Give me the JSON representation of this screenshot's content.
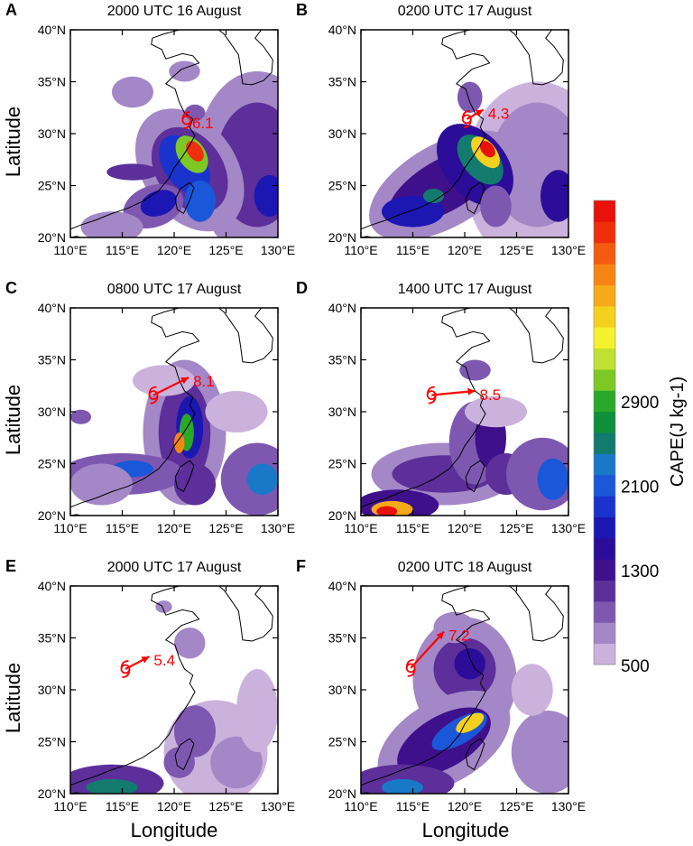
{
  "figure": {
    "x_axis_label": "Longitude",
    "y_axis_label": "Latitude",
    "lon_ticks": [
      "110°E",
      "115°E",
      "120°E",
      "125°E",
      "130°E"
    ],
    "lat_ticks": [
      "20°N",
      "25°N",
      "30°N",
      "35°N",
      "40°N"
    ],
    "colorbar": {
      "title": "CAPE(J kg-1)",
      "tick_labels": [
        "500",
        "1300",
        "2100",
        "2900"
      ],
      "tick_values": [
        500,
        1300,
        2100,
        2900
      ],
      "levels_start": 500,
      "level_step": 200,
      "colors": [
        "#cbb2dc",
        "#a487c6",
        "#7e58b0",
        "#5c2f9a",
        "#3f108c",
        "#2b0d99",
        "#1c16b3",
        "#1a33cc",
        "#1a57d9",
        "#1a78c8",
        "#137a6e",
        "#0f8f3a",
        "#2aa82a",
        "#7ec825",
        "#c2e032",
        "#f4f22c",
        "#f6d01e",
        "#f6a919",
        "#f68414",
        "#f45a10",
        "#ef2e0c",
        "#e8120b"
      ]
    }
  },
  "panels": [
    {
      "id": "A",
      "letter": "A",
      "title": "2000 UTC 16 August",
      "trajectory_label": "6.1",
      "marker": [
        121.2,
        31.3
      ],
      "arrow_tip": [
        121.3,
        31.4
      ]
    },
    {
      "id": "B",
      "letter": "B",
      "title": "0200 UTC 17 August",
      "trajectory_label": "4.3",
      "marker": [
        120.2,
        31.4
      ],
      "arrow_tip": [
        121.8,
        32.3
      ]
    },
    {
      "id": "C",
      "letter": "C",
      "title": "0800 UTC 17 August",
      "trajectory_label": "8.1",
      "marker": [
        118.0,
        31.6
      ],
      "arrow_tip": [
        121.4,
        33.3
      ]
    },
    {
      "id": "D",
      "letter": "D",
      "title": "1400 UTC 17 August",
      "trajectory_label": "8.5",
      "marker": [
        116.8,
        31.6
      ],
      "arrow_tip": [
        121.0,
        32.0
      ]
    },
    {
      "id": "E",
      "letter": "E",
      "title": "2000 UTC 17 August",
      "trajectory_label": "5.4",
      "marker": [
        115.3,
        32.0
      ],
      "arrow_tip": [
        117.6,
        33.2
      ]
    },
    {
      "id": "F",
      "letter": "F",
      "title": "0200 UTC 18 August",
      "trajectory_label": "7.2",
      "marker": [
        114.8,
        32.1
      ],
      "arrow_tip": [
        118.0,
        35.6
      ]
    }
  ],
  "style": {
    "annotation_color": "#ff0000",
    "coastline_color": "#000000"
  }
}
